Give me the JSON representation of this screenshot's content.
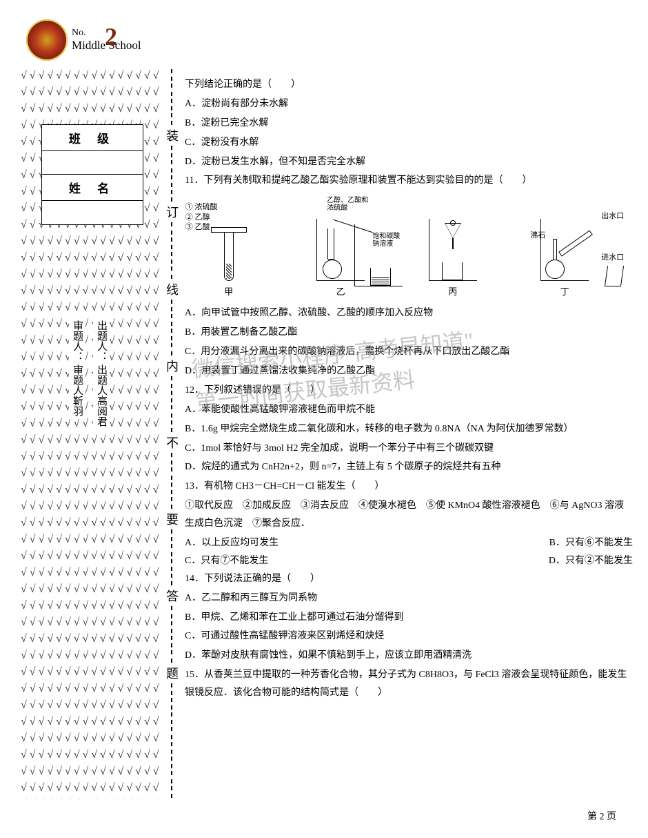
{
  "logo": {
    "line1": "No.",
    "line2": "Middle School",
    "z_overlay": "2"
  },
  "info": {
    "class_label": "班 级",
    "name_label": "姓 名"
  },
  "credits": {
    "author_label": "出题人：",
    "author_name": "出题人高阅君",
    "reviewer_label": "审题人：",
    "reviewer_name": "审题人靳羽"
  },
  "margin_chars": [
    "装",
    "订",
    "线",
    "内",
    "不",
    "要",
    "答",
    "题"
  ],
  "q_intro": "下列结论正确的是（　　）",
  "q10": {
    "a": "A．淀粉尚有部分未水解",
    "b": "B．淀粉已完全水解",
    "c": "C．淀粉没有水解",
    "d": "D．淀粉已发生水解，但不知是否完全水解"
  },
  "q11": {
    "stem": "11．下列有关制取和提纯乙酸乙酯实验原理和装置不能达到实验目的的是（　　）",
    "labels_left": [
      "① 浓硫酸",
      "② 乙醇",
      "③ 乙酸"
    ],
    "label_yi_top": "乙醇、乙酸和浓硫酸",
    "label_yi_mid": "饱和碳酸钠溶液",
    "label_bing": "",
    "label_ding_top": "出水口",
    "label_ding_mid": "沸石",
    "label_ding_bot": "进水口",
    "dev_labels": [
      "甲",
      "乙",
      "丙",
      "丁"
    ],
    "a": "A．向甲试管中按照乙醇、浓硫酸、乙酸的顺序加入反应物",
    "b": "B．用装置乙制备乙酸乙酯",
    "c": "C．用分液漏斗分离出来的碳酸钠溶液后，需换个烧杯再从下口放出乙酸乙酯",
    "d": "D．用装置丁通过蒸馏法收集纯净的乙酸乙酯"
  },
  "q12": {
    "stem": "12．下列叙述错误的是（　　）",
    "a": "A．苯能使酸性高锰酸钾溶液褪色而甲烷不能",
    "b": "B．1.6g 甲烷完全燃烧生成二氧化碳和水，转移的电子数为 0.8NA（NA 为阿伏加德罗常数）",
    "c": "C．1mol 苯恰好与 3mol H2 完全加成，说明一个苯分子中有三个碳碳双键",
    "d": "D．烷烃的通式为 CnH2n+2，则 n=7，主链上有 5 个碳原子的烷烃共有五种"
  },
  "q13": {
    "stem": "13．有机物 CH3－CH=CH－Cl 能发生（　　）",
    "opts": "①取代反应　②加成反应　③消去反应　④使溴水褪色　⑤使 KMnO4 酸性溶液褪色　⑥与 AgNO3 溶液生成白色沉淀　⑦聚合反应．",
    "a": "A．以上反应均可发生",
    "b": "B．只有⑥不能发生",
    "c": "C．只有⑦不能发生",
    "d": "D．只有②不能发生"
  },
  "q14": {
    "stem": "14．下列说法正确的是（　　）",
    "a": "A．乙二醇和丙三醇互为同系物",
    "b": "B．甲烷、乙烯和苯在工业上都可通过石油分馏得到",
    "c": "C．可通过酸性高锰酸钾溶液来区别烯烃和炔烃",
    "d": "D．苯酚对皮肤有腐蚀性，如果不慎粘到手上，应该立即用酒精清洗"
  },
  "q15": {
    "stem": "15．从香荚兰豆中提取的一种芳香化合物，其分子式为 C8H8O3，与 FeCl3 溶液会呈现特征颜色，能发生银镜反应．该化合物可能的结构简式是（　　）"
  },
  "watermark": {
    "l1": "微信搜索小程序\"高考早知道\"",
    "l2": "第一时间获取最新资料"
  },
  "footer": "第 2 页",
  "check_char": "√"
}
